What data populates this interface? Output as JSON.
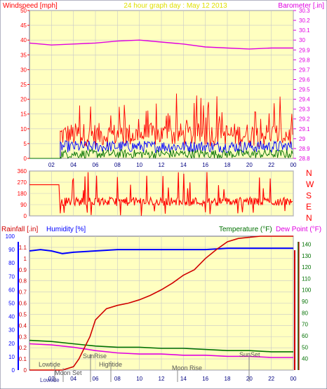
{
  "header_top": {
    "left_title": "Windspeed [mph]",
    "center_title": "24 hour graph day : May 12 2013",
    "right_title": "Barometer [.in]"
  },
  "header_bottom": {
    "rain_title": "Rainfall [.in]",
    "humidity_title": "Humidity [%]",
    "temp_title": "Temperature (°F)",
    "dew_title": "Dew Point (°F)"
  },
  "compass": [
    "N",
    "W",
    "S",
    "E",
    "N"
  ],
  "annotations": {
    "lowtide1": "Lowtide",
    "moonset": "Moon Set",
    "sunrise": "SunRise",
    "hightide": "Hightide",
    "moonrise": "Moon Rise",
    "sunset": "SunSet",
    "lowtide2": "Lowtide"
  },
  "colors": {
    "bg": "#ffffc0",
    "frame": "#6a6a8a",
    "grid": "#c8c8c8",
    "wind_gust": "#ff0000",
    "wind_avg": "#0000ff",
    "wind_low": "#007000",
    "barometer": "#e000e0",
    "direction": "#ff0000",
    "humidity": "#0000ff",
    "rain": "#d00000",
    "temp": "#007000",
    "dew": "#e000e0"
  },
  "chart_data": [
    {
      "type": "line",
      "title": "24 hour graph day : May 12 2013",
      "xlabel": "",
      "ylabel": "Windspeed [mph]",
      "y2label": "Barometer [.in]",
      "x_ticks": [
        "02",
        "04",
        "06",
        "08",
        "10",
        "12",
        "14",
        "16",
        "18",
        "20",
        "22",
        "00"
      ],
      "ylim": [
        0,
        50
      ],
      "y_ticks": [
        0,
        5,
        10,
        15,
        20,
        25,
        30,
        35,
        40,
        45,
        50
      ],
      "y2lim": [
        28.8,
        30.3
      ],
      "y2_ticks": [
        "28.8",
        "28.9",
        "29",
        "29.1",
        "29.2",
        "29.3",
        "29.4",
        "29.5",
        "29.6",
        "29.7",
        "29.8",
        "29.9",
        "30",
        "30.1",
        "30.2",
        "30.3"
      ],
      "barometer_hours": [
        0,
        2,
        4,
        6,
        8,
        10,
        12,
        14,
        16,
        18,
        20,
        22,
        24
      ],
      "barometer_values": [
        29.97,
        29.95,
        29.96,
        29.97,
        29.99,
        30.0,
        29.98,
        29.96,
        29.93,
        29.92,
        29.91,
        29.92,
        29.92
      ],
      "wind_start_hour": 2.8,
      "wind_gust_band": [
        4,
        12
      ],
      "wind_gust_max": 22,
      "wind_avg_band": [
        2,
        6
      ],
      "wind_low_band": [
        0,
        3
      ]
    },
    {
      "type": "line",
      "ylabel": "Direction",
      "ylim": [
        0,
        360
      ],
      "y_ticks": [
        0,
        90,
        180,
        270,
        360
      ],
      "start_value": 250,
      "switch_hour": 2.8,
      "base_band": [
        80,
        150
      ]
    },
    {
      "type": "line",
      "ylabel": "Rainfall [.in]",
      "ylim": [
        0,
        1.2
      ],
      "y_ticks": [
        "0",
        "0.1",
        "0.2",
        "0.3",
        "0.4",
        "0.5",
        "0.6",
        "0.7",
        "0.8",
        "0.9",
        "1",
        "1.1"
      ],
      "humidity_ticks": [
        0,
        10,
        20,
        30,
        40,
        50,
        60,
        70,
        80,
        90,
        100
      ],
      "humidity_lim": [
        0,
        100
      ],
      "temp_ticks": [
        40,
        50,
        60,
        70,
        80,
        90,
        100,
        110,
        120,
        130,
        140
      ],
      "temp_lim": [
        30,
        147
      ],
      "rain_hours": [
        0,
        2,
        3,
        4,
        4.5,
        5,
        5.5,
        6,
        7,
        8,
        9,
        10,
        11,
        12,
        13,
        14,
        15,
        16,
        17,
        18,
        19,
        20,
        21,
        22,
        23,
        24
      ],
      "rain_values": [
        0,
        0,
        0,
        0.03,
        0.1,
        0.2,
        0.3,
        0.45,
        0.55,
        0.58,
        0.6,
        0.63,
        0.67,
        0.72,
        0.78,
        0.85,
        0.9,
        1.0,
        1.08,
        1.15,
        1.18,
        1.19,
        1.2,
        1.2,
        1.2,
        1.2
      ],
      "humidity_hours": [
        0,
        1,
        2,
        3,
        4,
        6,
        8,
        10,
        12,
        14,
        16,
        18,
        20,
        22,
        24
      ],
      "humidity_values": [
        89,
        90,
        89,
        87,
        88,
        89,
        90,
        90,
        90,
        90,
        90,
        91,
        91,
        91,
        91
      ],
      "temp_hours": [
        0,
        2,
        4,
        6,
        8,
        10,
        12,
        14,
        16,
        18,
        20,
        22,
        24
      ],
      "temp_values": [
        56,
        55,
        53,
        51,
        50,
        50,
        49,
        49,
        48,
        47,
        47,
        46,
        46
      ],
      "dew_hours": [
        0,
        2,
        4,
        6,
        8,
        10,
        12,
        14,
        16,
        18,
        20,
        22,
        24
      ],
      "dew_values": [
        53,
        52,
        50,
        47,
        45,
        44,
        44,
        43,
        43,
        42,
        42,
        41,
        41
      ]
    }
  ]
}
